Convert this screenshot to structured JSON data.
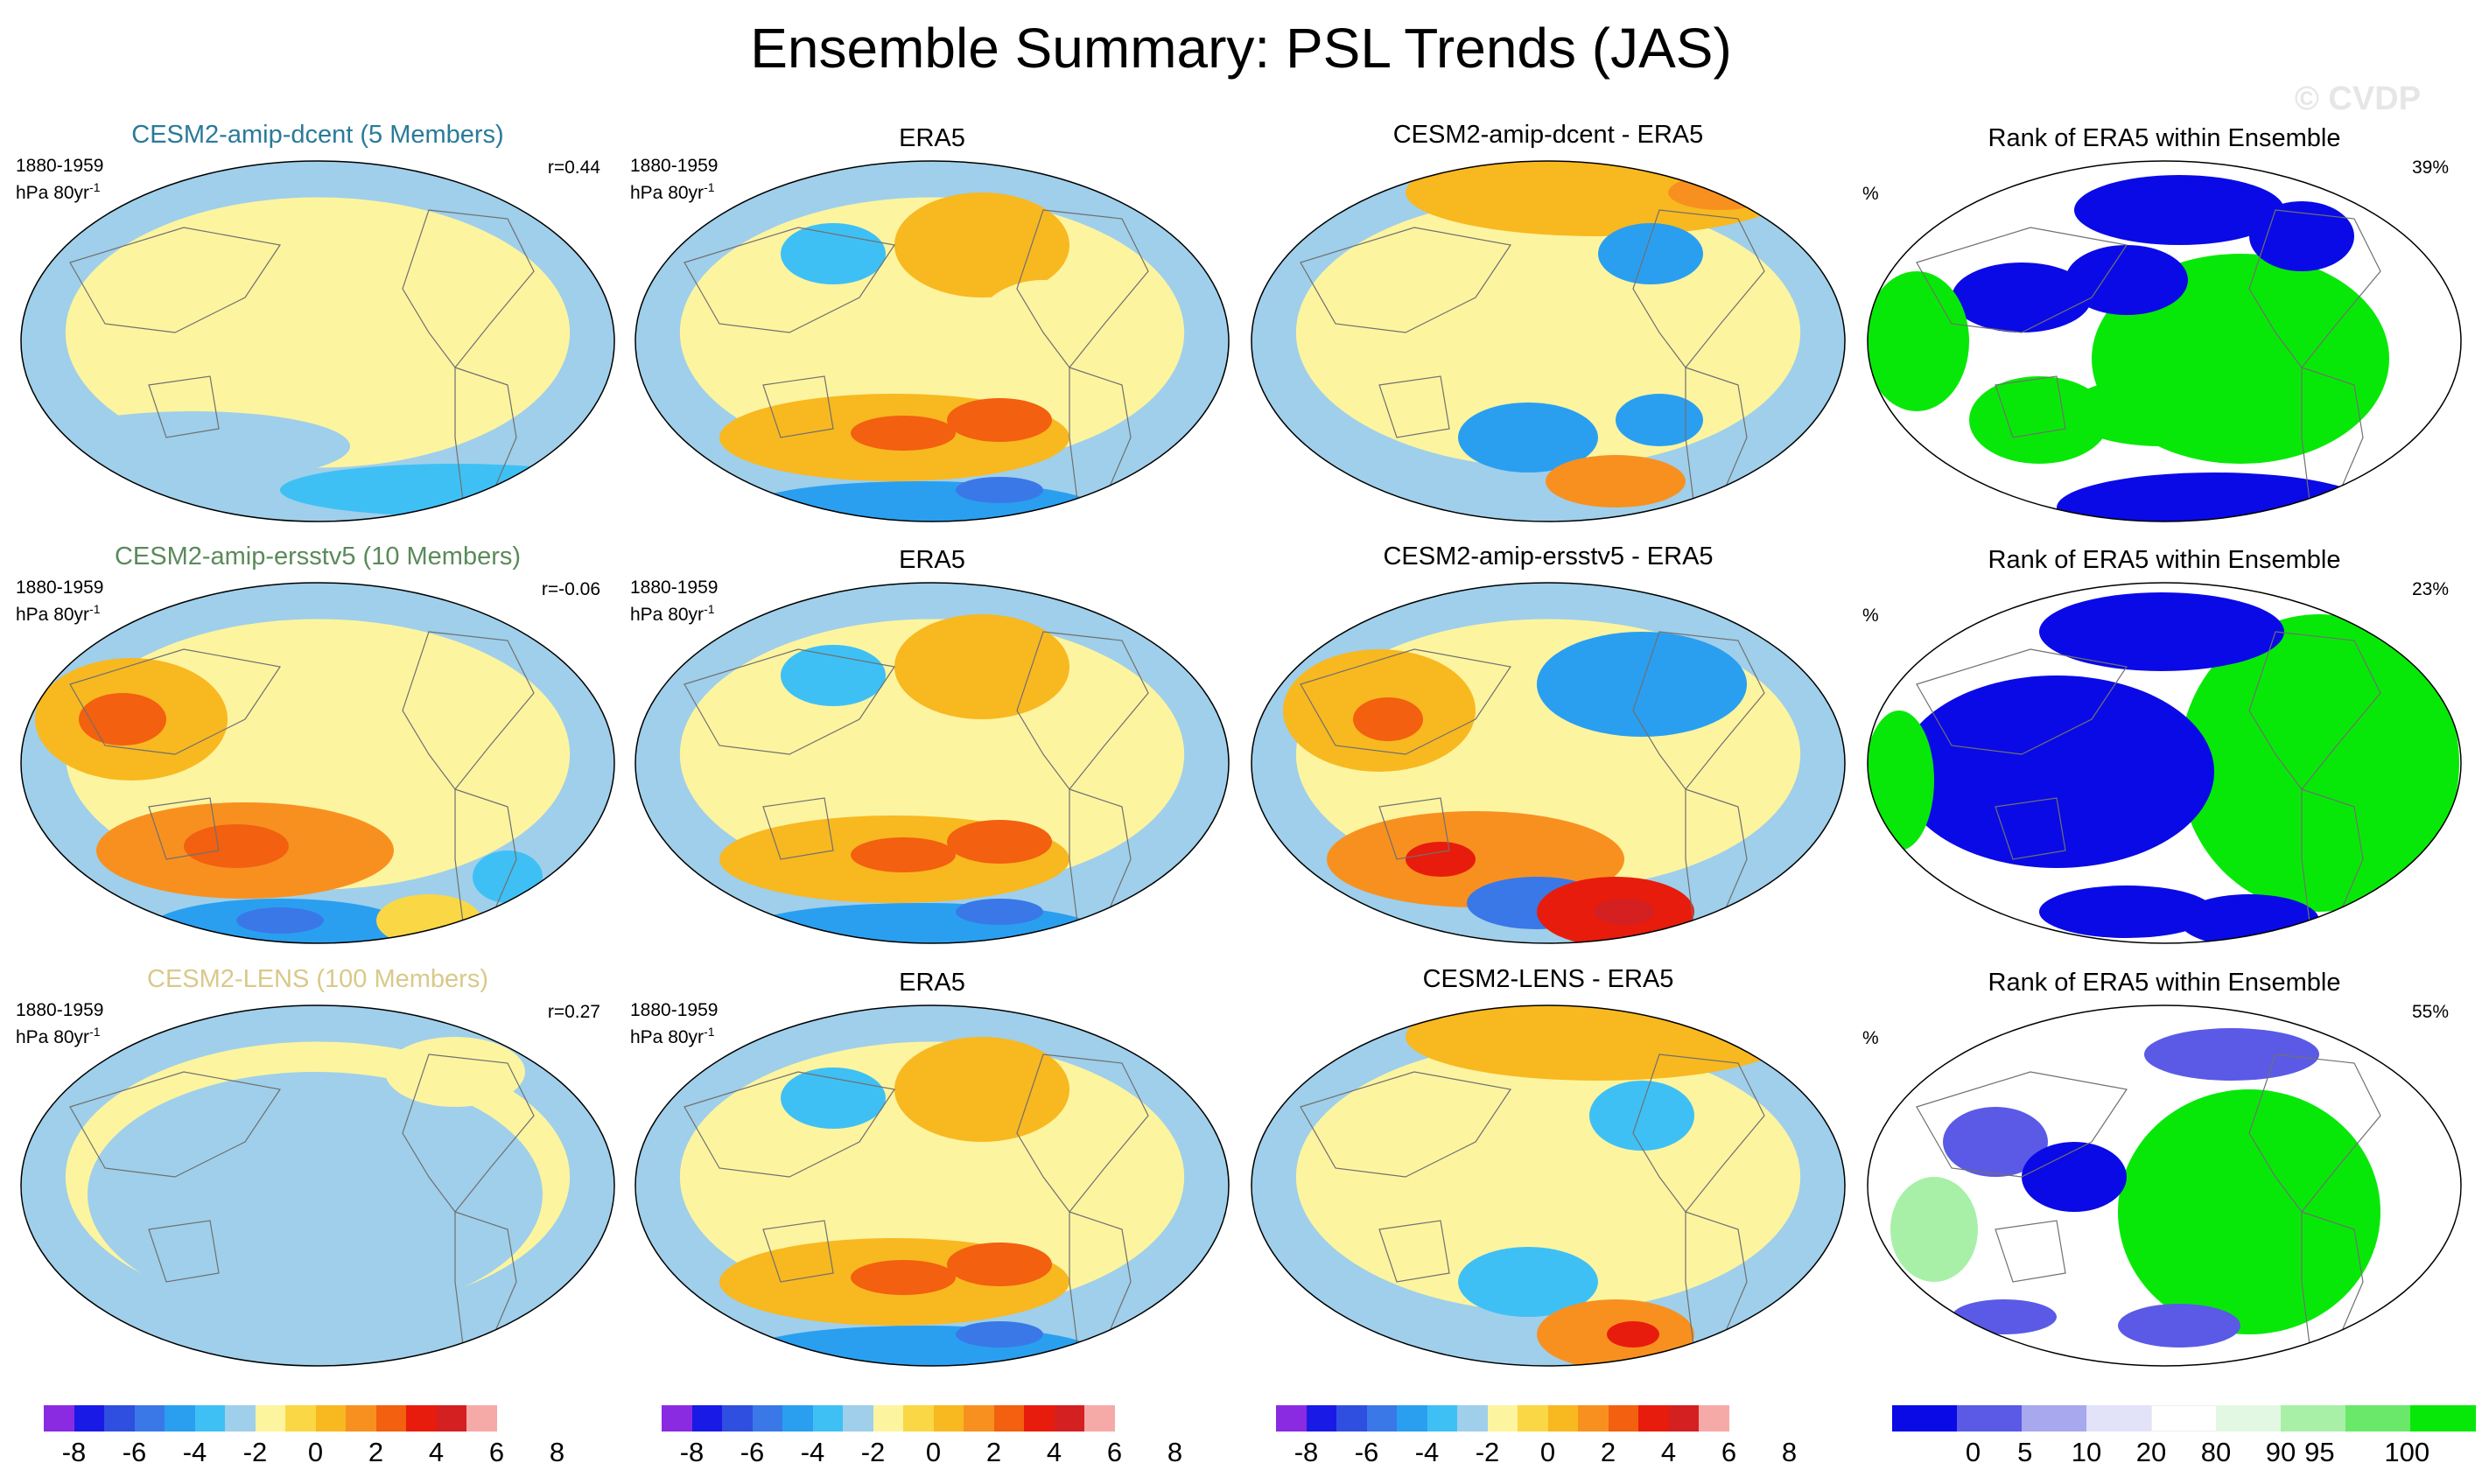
{
  "title": "Ensemble Summary: PSL Trends (JAS)",
  "watermark": "© CVDP",
  "rows": [
    {
      "model_title": "CESM2-amip-dcent (5 Members)",
      "model_title_color": "#2a7a99",
      "period": "1880-1959",
      "units": "hPa 80yr",
      "units_sup": "-1",
      "r": "r=0.44",
      "obs_title": "ERA5",
      "diff_title": "CESM2-amip-dcent - ERA5",
      "rank_title": "Rank of ERA5 within Ensemble",
      "rank_unit": "%",
      "rank_pct": "39%"
    },
    {
      "model_title": "CESM2-amip-ersstv5 (10 Members)",
      "model_title_color": "#5a8a5a",
      "period": "1880-1959",
      "units": "hPa 80yr",
      "units_sup": "-1",
      "r": "r=-0.06",
      "obs_title": "ERA5",
      "diff_title": "CESM2-amip-ersstv5 - ERA5",
      "rank_title": "Rank of ERA5 within Ensemble",
      "rank_unit": "%",
      "rank_pct": "23%"
    },
    {
      "model_title": "CESM2-LENS (100 Members)",
      "model_title_color": "#d9c98a",
      "period": "1880-1959",
      "units": "hPa 80yr",
      "units_sup": "-1",
      "r": "r=0.27",
      "obs_title": "ERA5",
      "diff_title": "CESM2-LENS - ERA5",
      "rank_title": "Rank of ERA5 within Ensemble",
      "rank_unit": "%",
      "rank_pct": "55%"
    }
  ],
  "colorbars": {
    "psl_colors": [
      "#8a2be2",
      "#1a1ae6",
      "#2f4fe0",
      "#3a78e8",
      "#2a9ff0",
      "#3fc0f5",
      "#9fcfea",
      "#fdf4a0",
      "#fad744",
      "#f8b820",
      "#f89020",
      "#f26010",
      "#e81c0c",
      "#d42020",
      "#f6aaa8"
    ],
    "psl_labels": [
      "-8",
      "-6",
      "-4",
      "-2",
      "0",
      "2",
      "4",
      "6",
      "8"
    ],
    "rank_colors": [
      "#0a0ae6",
      "#5a5ae6",
      "#a8a8ee",
      "#e2e2f8",
      "#ffffff",
      "#e2f8e2",
      "#a8f0a8",
      "#6ae86a",
      "#08e808"
    ],
    "rank_labels": [
      "0",
      "5",
      "10",
      "20",
      "80",
      "90",
      "95",
      "100"
    ],
    "ocean_color": "#b9ddf0",
    "land_outline_color": "#707070"
  }
}
